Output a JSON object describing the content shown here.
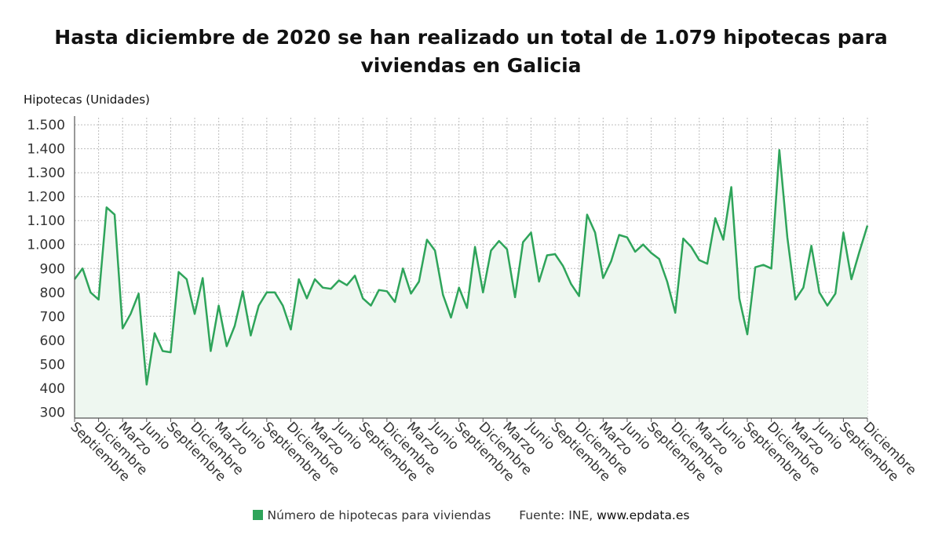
{
  "title": "Hasta diciembre de 2020 se han realizado un total de 1.079 hipotecas para viviendas en Galicia",
  "colors": {
    "line": "#2ea45a",
    "fill": "#eef7f0",
    "grid": "#bdbdbd",
    "axis": "#555555"
  },
  "legend": {
    "series_label": "Número de hipotecas para viviendas",
    "source_prefix": "Fuente: INE, ",
    "source_site": "www.epdata.es"
  },
  "chart_data": {
    "type": "line",
    "ylabel": "Hipotecas (Unidades)",
    "ylim": [
      275,
      1530
    ],
    "yticks": [
      300,
      400,
      500,
      600,
      700,
      800,
      900,
      1000,
      1100,
      1200,
      1300,
      1400,
      1500
    ],
    "ytick_labels": [
      "300",
      "400",
      "500",
      "600",
      "700",
      "800",
      "900",
      "1.000",
      "1.100",
      "1.200",
      "1.300",
      "1.400",
      "1.500"
    ],
    "x_tick_labels": [
      "Septiembre",
      "Diciembre",
      "Marzo",
      "Junio",
      "Septiembre",
      "Diciembre",
      "Marzo",
      "Junio",
      "Septiembre",
      "Diciembre",
      "Marzo",
      "Junio",
      "Septiembre",
      "Diciembre",
      "Marzo",
      "Junio",
      "Septiembre",
      "Diciembre",
      "Marzo",
      "Junio",
      "Septiembre",
      "Diciembre",
      "Marzo",
      "Junio",
      "Septiembre",
      "Diciembre",
      "Marzo",
      "Junio",
      "Septiembre",
      "Diciembre",
      "Marzo",
      "Junio",
      "Septiembre",
      "Diciembre"
    ],
    "grid": true,
    "legend_position": "bottom",
    "series": [
      {
        "name": "Número de hipotecas para viviendas",
        "values": [
          855,
          900,
          800,
          770,
          1155,
          1125,
          650,
          710,
          795,
          415,
          630,
          555,
          550,
          885,
          855,
          710,
          860,
          555,
          745,
          575,
          660,
          805,
          620,
          745,
          800,
          800,
          745,
          645,
          855,
          775,
          855,
          820,
          815,
          850,
          830,
          870,
          775,
          745,
          810,
          805,
          760,
          900,
          795,
          845,
          1020,
          975,
          790,
          695,
          820,
          735,
          990,
          800,
          975,
          1015,
          980,
          780,
          1010,
          1050,
          845,
          955,
          960,
          910,
          835,
          785,
          1125,
          1050,
          860,
          930,
          1040,
          1030,
          970,
          1000,
          965,
          940,
          845,
          715,
          1025,
          990,
          935,
          920,
          1110,
          1020,
          1240,
          775,
          625,
          905,
          915,
          900,
          1395,
          1030,
          770,
          820,
          995,
          800,
          745,
          795,
          1050,
          855,
          970,
          1079
        ]
      }
    ]
  }
}
